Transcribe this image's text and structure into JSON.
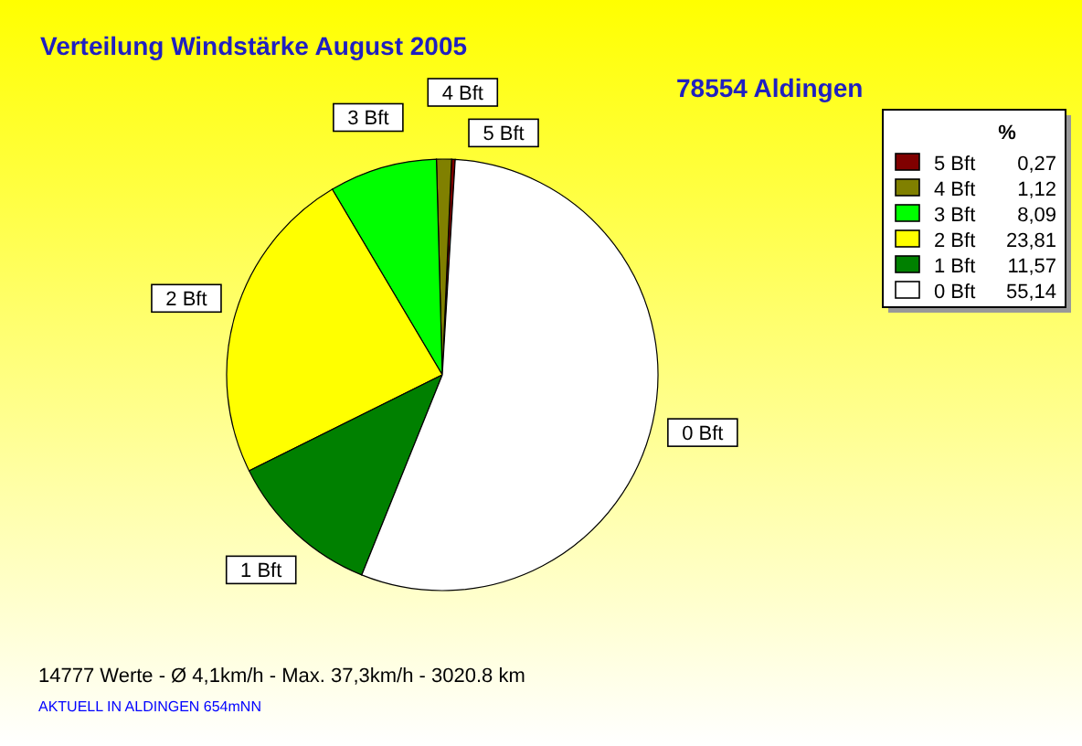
{
  "chart_data": {
    "type": "pie",
    "title": "Verteilung Windstärke  August 2005",
    "subtitle": "78554 Aldingen",
    "legend_title": "%",
    "categories": [
      "5 Bft",
      "4 Bft",
      "3 Bft",
      "2 Bft",
      "1 Bft",
      "0 Bft"
    ],
    "values": [
      0.27,
      1.12,
      8.09,
      23.81,
      11.57,
      55.14
    ],
    "value_labels": [
      "0,27",
      "1,12",
      "8,09",
      "23,81",
      "11,57",
      "55,14"
    ],
    "colors": [
      "#800000",
      "#808000",
      "#00ff00",
      "#ffff00",
      "#008000",
      "#ffffff"
    ],
    "legend": "top right",
    "annotations": [
      "14777 Werte   -   Ø 4,1km/h  -  Max. 37,3km/h   -   3020.8 km",
      "AKTUELL IN ALDINGEN 654mNN"
    ]
  }
}
